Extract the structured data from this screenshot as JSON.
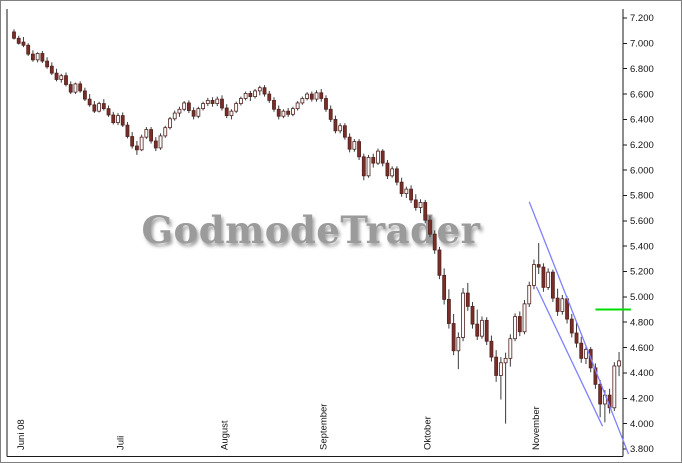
{
  "watermark": {
    "text": "GodmodeTrader"
  },
  "chart_data": {
    "type": "candlestick",
    "x_axis": {
      "months": [
        {
          "label": "Juni 08",
          "start_index": 0
        },
        {
          "label": "Juli",
          "start_index": 21
        },
        {
          "label": "August",
          "start_index": 43
        },
        {
          "label": "September",
          "start_index": 64
        },
        {
          "label": "Oktober",
          "start_index": 86
        },
        {
          "label": "November",
          "start_index": 109
        }
      ]
    },
    "y_axis": {
      "ticks": [
        {
          "price": 7200,
          "label": "7.200"
        },
        {
          "price": 7000,
          "label": "7.000"
        },
        {
          "price": 6800,
          "label": "6.800"
        },
        {
          "price": 6600,
          "label": "6.600"
        },
        {
          "price": 6400,
          "label": "6.400"
        },
        {
          "price": 6200,
          "label": "6.200"
        },
        {
          "price": 6000,
          "label": "6.000"
        },
        {
          "price": 5800,
          "label": "5.800"
        },
        {
          "price": 5600,
          "label": "5.600"
        },
        {
          "price": 5400,
          "label": "5.400"
        },
        {
          "price": 5200,
          "label": "5.200"
        },
        {
          "price": 5000,
          "label": "5.000"
        },
        {
          "price": 4800,
          "label": "4.800"
        },
        {
          "price": 4600,
          "label": "4.600"
        },
        {
          "price": 4400,
          "label": "4.400"
        },
        {
          "price": 4200,
          "label": "4.200"
        },
        {
          "price": 4000,
          "label": "4.000"
        },
        {
          "price": 3800,
          "label": "3.800"
        }
      ]
    },
    "candles": [
      [
        7090,
        7110,
        7030,
        7040
      ],
      [
        7040,
        7060,
        6990,
        7000
      ],
      [
        7010,
        7050,
        6970,
        6985
      ],
      [
        6985,
        7000,
        6900,
        6915
      ],
      [
        6915,
        6945,
        6855,
        6870
      ],
      [
        6870,
        6930,
        6850,
        6920
      ],
      [
        6920,
        6940,
        6845,
        6860
      ],
      [
        6860,
        6890,
        6800,
        6815
      ],
      [
        6820,
        6850,
        6750,
        6765
      ],
      [
        6765,
        6800,
        6700,
        6715
      ],
      [
        6715,
        6760,
        6690,
        6745
      ],
      [
        6745,
        6770,
        6660,
        6675
      ],
      [
        6675,
        6700,
        6600,
        6615
      ],
      [
        6615,
        6690,
        6600,
        6680
      ],
      [
        6680,
        6700,
        6610,
        6625
      ],
      [
        6625,
        6650,
        6545,
        6560
      ],
      [
        6560,
        6600,
        6500,
        6515
      ],
      [
        6515,
        6545,
        6450,
        6465
      ],
      [
        6465,
        6540,
        6455,
        6525
      ],
      [
        6525,
        6560,
        6470,
        6485
      ],
      [
        6485,
        6510,
        6420,
        6435
      ],
      [
        6435,
        6460,
        6360,
        6375
      ],
      [
        6375,
        6450,
        6355,
        6430
      ],
      [
        6430,
        6455,
        6340,
        6355
      ],
      [
        6355,
        6380,
        6250,
        6265
      ],
      [
        6265,
        6300,
        6170,
        6190
      ],
      [
        6190,
        6230,
        6120,
        6160
      ],
      [
        6160,
        6280,
        6150,
        6260
      ],
      [
        6260,
        6340,
        6245,
        6320
      ],
      [
        6320,
        6340,
        6210,
        6230
      ],
      [
        6230,
        6260,
        6150,
        6175
      ],
      [
        6175,
        6290,
        6160,
        6270
      ],
      [
        6270,
        6350,
        6255,
        6335
      ],
      [
        6335,
        6420,
        6320,
        6405
      ],
      [
        6405,
        6470,
        6390,
        6450
      ],
      [
        6450,
        6500,
        6420,
        6480
      ],
      [
        6480,
        6545,
        6465,
        6530
      ],
      [
        6530,
        6550,
        6450,
        6470
      ],
      [
        6470,
        6495,
        6400,
        6425
      ],
      [
        6425,
        6500,
        6410,
        6485
      ],
      [
        6485,
        6540,
        6470,
        6525
      ],
      [
        6525,
        6570,
        6505,
        6550
      ],
      [
        6550,
        6575,
        6500,
        6525
      ],
      [
        6525,
        6580,
        6505,
        6560
      ],
      [
        6560,
        6590,
        6470,
        6490
      ],
      [
        6490,
        6520,
        6410,
        6430
      ],
      [
        6430,
        6480,
        6400,
        6465
      ],
      [
        6465,
        6540,
        6450,
        6525
      ],
      [
        6525,
        6580,
        6510,
        6565
      ],
      [
        6565,
        6620,
        6550,
        6605
      ],
      [
        6605,
        6625,
        6545,
        6580
      ],
      [
        6580,
        6640,
        6565,
        6625
      ],
      [
        6625,
        6665,
        6590,
        6650
      ],
      [
        6650,
        6670,
        6580,
        6600
      ],
      [
        6600,
        6625,
        6530,
        6550
      ],
      [
        6550,
        6575,
        6460,
        6480
      ],
      [
        6480,
        6510,
        6400,
        6425
      ],
      [
        6425,
        6480,
        6410,
        6465
      ],
      [
        6465,
        6490,
        6420,
        6440
      ],
      [
        6440,
        6500,
        6425,
        6485
      ],
      [
        6485,
        6545,
        6470,
        6530
      ],
      [
        6530,
        6580,
        6515,
        6565
      ],
      [
        6565,
        6615,
        6550,
        6600
      ],
      [
        6600,
        6620,
        6540,
        6560
      ],
      [
        6560,
        6630,
        6540,
        6610
      ],
      [
        6610,
        6640,
        6540,
        6565
      ],
      [
        6565,
        6590,
        6460,
        6480
      ],
      [
        6480,
        6510,
        6380,
        6400
      ],
      [
        6400,
        6430,
        6290,
        6310
      ],
      [
        6310,
        6370,
        6290,
        6350
      ],
      [
        6350,
        6370,
        6240,
        6260
      ],
      [
        6260,
        6290,
        6140,
        6165
      ],
      [
        6165,
        6245,
        6145,
        6225
      ],
      [
        6225,
        6245,
        6080,
        6105
      ],
      [
        6105,
        6130,
        5920,
        5955
      ],
      [
        5955,
        6120,
        5940,
        6100
      ],
      [
        6100,
        6130,
        6020,
        6055
      ],
      [
        6055,
        6170,
        6040,
        6150
      ],
      [
        6150,
        6165,
        6030,
        6055
      ],
      [
        6055,
        6080,
        5930,
        5955
      ],
      [
        5955,
        6030,
        5940,
        6010
      ],
      [
        6010,
        6030,
        5880,
        5905
      ],
      [
        5905,
        5940,
        5790,
        5815
      ],
      [
        5815,
        5870,
        5780,
        5850
      ],
      [
        5850,
        5880,
        5740,
        5765
      ],
      [
        5765,
        5810,
        5680,
        5705
      ],
      [
        5705,
        5770,
        5660,
        5745
      ],
      [
        5745,
        5765,
        5580,
        5605
      ],
      [
        5605,
        5640,
        5470,
        5495
      ],
      [
        5495,
        5525,
        5340,
        5370
      ],
      [
        5370,
        5395,
        5140,
        5170
      ],
      [
        5170,
        5225,
        4940,
        4980
      ],
      [
        4980,
        5060,
        4750,
        4790
      ],
      [
        4790,
        4865,
        4540,
        4575
      ],
      [
        4575,
        4720,
        4430,
        4680
      ],
      [
        4680,
        5070,
        4650,
        5030
      ],
      [
        5030,
        5110,
        4890,
        4925
      ],
      [
        4925,
        4960,
        4750,
        4785
      ],
      [
        4785,
        4900,
        4660,
        4690
      ],
      [
        4690,
        4845,
        4670,
        4815
      ],
      [
        4815,
        4840,
        4620,
        4650
      ],
      [
        4650,
        4695,
        4490,
        4525
      ],
      [
        4525,
        4580,
        4330,
        4380
      ],
      [
        4380,
        4525,
        4190,
        4480
      ],
      [
        4480,
        4560,
        4000,
        4515
      ],
      [
        4515,
        4705,
        4450,
        4670
      ],
      [
        4670,
        4870,
        4650,
        4845
      ],
      [
        4845,
        4885,
        4690,
        4725
      ],
      [
        4725,
        4975,
        4705,
        4945
      ],
      [
        4945,
        5120,
        4920,
        5090
      ],
      [
        5090,
        5295,
        5060,
        5255
      ],
      [
        5255,
        5425,
        5180,
        5235
      ],
      [
        5235,
        5265,
        5040,
        5075
      ],
      [
        5075,
        5225,
        5055,
        5195
      ],
      [
        5195,
        5215,
        4960,
        4990
      ],
      [
        4990,
        5065,
        4850,
        4885
      ],
      [
        4885,
        5015,
        4860,
        4985
      ],
      [
        4985,
        5005,
        4790,
        4825
      ],
      [
        4825,
        4865,
        4680,
        4715
      ],
      [
        4715,
        4795,
        4600,
        4635
      ],
      [
        4635,
        4685,
        4480,
        4515
      ],
      [
        4515,
        4615,
        4470,
        4585
      ],
      [
        4585,
        4605,
        4405,
        4440
      ],
      [
        4440,
        4475,
        4275,
        4310
      ],
      [
        4310,
        4345,
        4050,
        4155
      ],
      [
        4155,
        4265,
        4010,
        4225
      ],
      [
        4225,
        4275,
        4080,
        4125
      ],
      [
        4125,
        4485,
        4100,
        4455
      ],
      [
        4455,
        4565,
        4375,
        4495
      ]
    ],
    "annotations": {
      "trendlines": [
        {
          "from_index": 109,
          "from_price": 5750,
          "to_index": 130,
          "to_price": 3760,
          "color": "#8080ff"
        },
        {
          "from_index": 110.5,
          "from_price": 5080,
          "to_index": 124.5,
          "to_price": 3980,
          "color": "#8080ff"
        }
      ],
      "hline": {
        "price": 4900,
        "from_index": 123,
        "to_index": 130.5,
        "color": "#00dd00"
      }
    },
    "style": {
      "up_fill": "#fbfbfb",
      "down_fill": "#7a2e28",
      "body_stroke": "#52231f",
      "wick": "#3c3c3c",
      "axis": "#1a1a1a",
      "label_color": "#111111"
    }
  }
}
